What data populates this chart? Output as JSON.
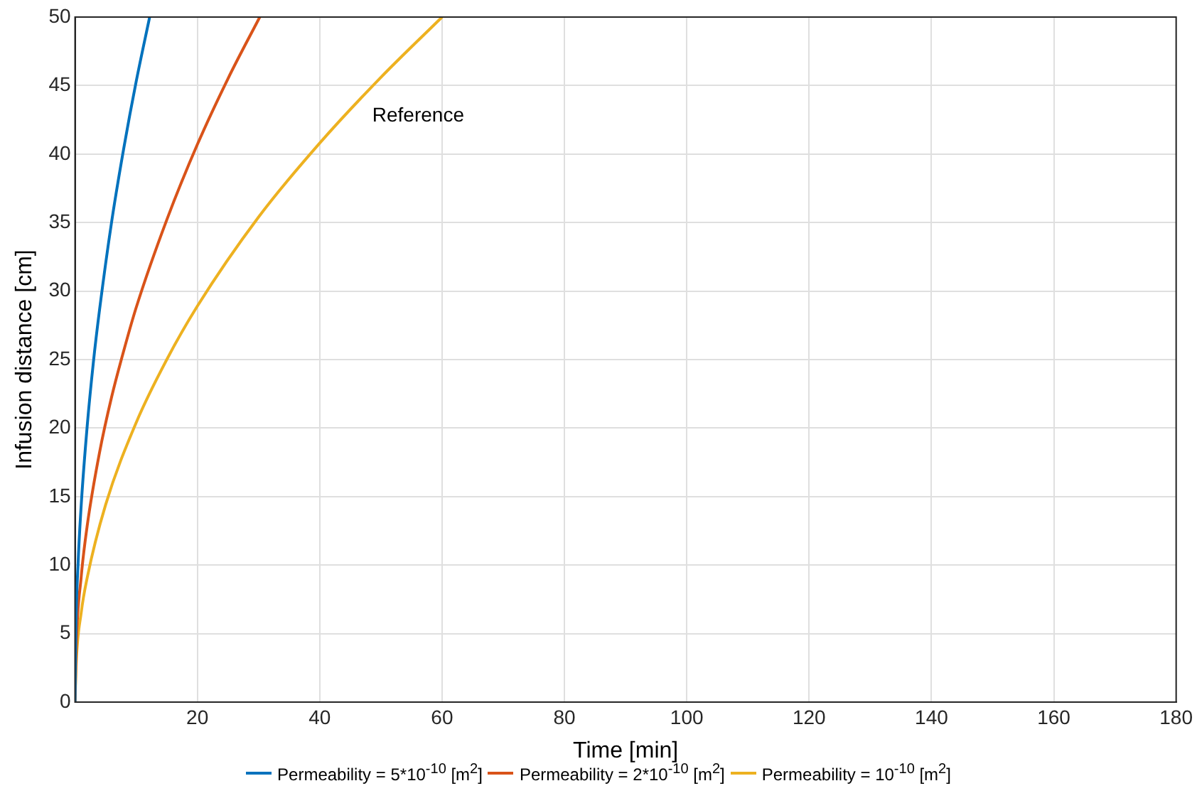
{
  "chart_data": {
    "type": "line",
    "xlabel": "Time [min]",
    "ylabel": "Infusion distance [cm]",
    "xlim": [
      0,
      180
    ],
    "xticks": [
      {
        "value": 0,
        "label": null
      },
      20,
      40,
      60,
      80,
      100,
      120,
      140,
      160,
      180
    ],
    "ylim": [
      0,
      50
    ],
    "yticks": [
      0,
      5,
      10,
      15,
      20,
      25,
      30,
      35,
      40,
      45,
      50
    ],
    "grid": true,
    "legend": "bottom",
    "marker": "none",
    "line_style": "solid",
    "annotations": [
      "Reference"
    ],
    "series": [
      {
        "name": "Permeability = 5*10$^{-10}$ [m$^{2}$]",
        "color": "#0072bd",
        "x": [
          0,
          0.1,
          0.5,
          1,
          2,
          3,
          4,
          6,
          8,
          10,
          12.2
        ],
        "values": [
          0,
          4.5,
          10.1,
          14.3,
          20.2,
          24.8,
          28.6,
          35.1,
          40.5,
          45.3,
          50
        ]
      },
      {
        "name": "Permeability = 2*10$^{-10}$ [m$^{2}$]",
        "color": "#d95319",
        "x": [
          0,
          0.2,
          1,
          2,
          4,
          6,
          8,
          10,
          15,
          20,
          25,
          30.2
        ],
        "values": [
          0,
          4.1,
          9.1,
          12.9,
          18.2,
          22.3,
          25.7,
          28.8,
          35.2,
          40.7,
          45.5,
          50
        ]
      },
      {
        "name": "Permeability = 10$^{-10}$ [m$^{2}$]",
        "color": "#edb120",
        "x": [
          0,
          0.2,
          1,
          2,
          5,
          10,
          15,
          20,
          30,
          40,
          50,
          60
        ],
        "values": [
          0,
          2.9,
          6.5,
          9.1,
          14.4,
          20.4,
          25,
          28.9,
          35.4,
          40.8,
          45.6,
          50
        ]
      }
    ]
  }
}
